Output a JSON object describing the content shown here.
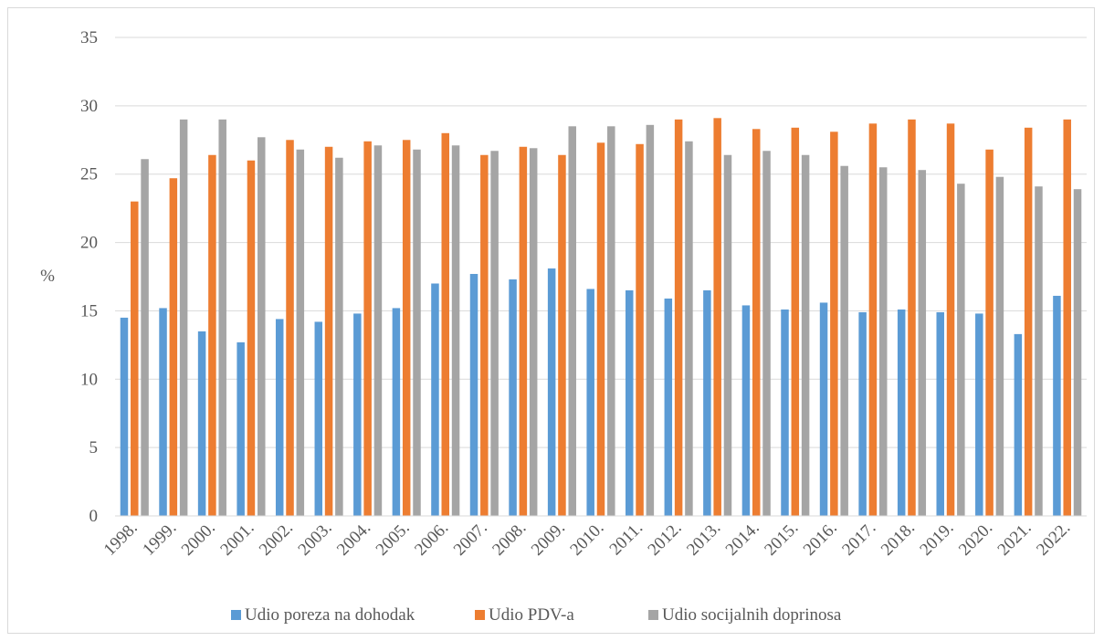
{
  "chart_data": {
    "type": "bar",
    "title": "",
    "xlabel": "",
    "ylabel": "%",
    "ylim": [
      0,
      35
    ],
    "yticks": [
      "0",
      "5",
      "10",
      "15",
      "20",
      "25",
      "30",
      "35"
    ],
    "grid": true,
    "legend_position": "bottom",
    "categories": [
      "1998.",
      "1999.",
      "2000.",
      "2001.",
      "2002.",
      "2003.",
      "2004.",
      "2005.",
      "2006.",
      "2007.",
      "2008.",
      "2009.",
      "2010.",
      "2011.",
      "2012.",
      "2013.",
      "2014.",
      "2015.",
      "2016.",
      "2017.",
      "2018.",
      "2019.",
      "2020.",
      "2021.",
      "2022."
    ],
    "series": [
      {
        "name": "Udio poreza na dohodak",
        "color": "#5b9bd5",
        "values": [
          14.5,
          15.2,
          13.5,
          12.7,
          14.4,
          14.2,
          14.8,
          15.2,
          17.0,
          17.7,
          17.3,
          18.1,
          16.6,
          16.5,
          15.9,
          16.5,
          15.4,
          15.1,
          15.6,
          14.9,
          15.1,
          14.9,
          14.8,
          13.3,
          16.1
        ]
      },
      {
        "name": "Udio PDV-a",
        "color": "#ed7d31",
        "values": [
          23.0,
          24.7,
          26.4,
          26.0,
          27.5,
          27.0,
          27.4,
          27.5,
          28.0,
          26.4,
          27.0,
          26.4,
          27.3,
          27.2,
          29.0,
          29.1,
          28.3,
          28.4,
          28.1,
          28.7,
          29.0,
          28.7,
          26.8,
          28.4,
          29.0
        ]
      },
      {
        "name": "Udio socijalnih doprinosa",
        "color": "#a5a5a5",
        "values": [
          26.1,
          29.0,
          29.0,
          27.7,
          26.8,
          26.2,
          27.1,
          26.8,
          27.1,
          26.7,
          26.9,
          28.5,
          28.5,
          28.6,
          27.4,
          26.4,
          26.7,
          26.4,
          25.6,
          25.5,
          25.3,
          24.3,
          24.8,
          24.1,
          23.9
        ]
      }
    ]
  }
}
